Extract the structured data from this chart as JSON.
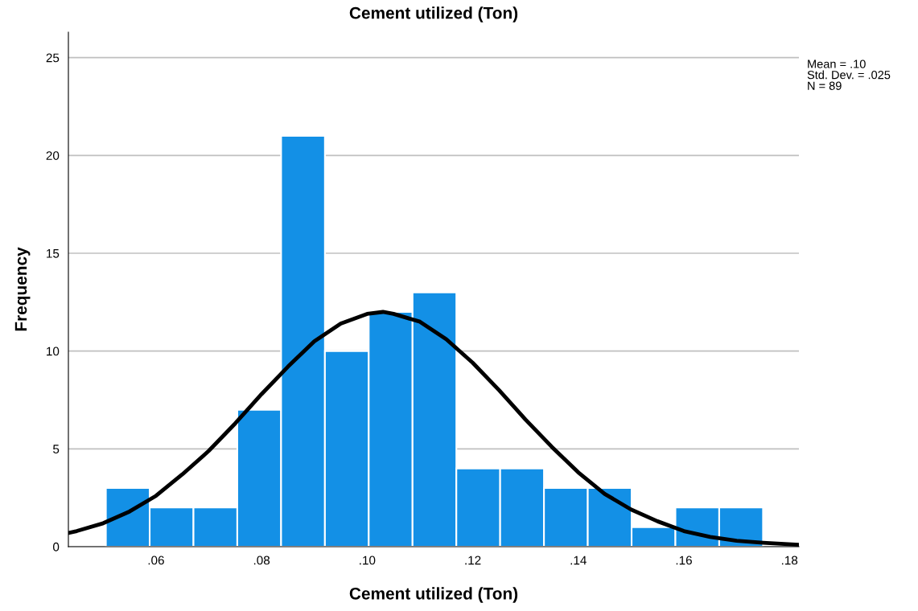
{
  "chart_data": {
    "type": "histogram",
    "title": "Cement utilized (Ton)",
    "xlabel": "Cement utilized (Ton)",
    "ylabel": "Frequency",
    "bins": [
      0.0505,
      0.0588,
      0.0671,
      0.0754,
      0.0837,
      0.092,
      0.1003,
      0.1086,
      0.1169,
      0.1252,
      0.1335,
      0.1418,
      0.1501,
      0.1584,
      0.1667,
      0.175
    ],
    "values": [
      3,
      2,
      2,
      7,
      21,
      10,
      12,
      13,
      4,
      4,
      3,
      3,
      1,
      2,
      2
    ],
    "color": "#1390e6",
    "series": [
      {
        "type": "line",
        "color": "#000000",
        "x": [
          0.0434,
          0.045,
          0.05,
          0.055,
          0.06,
          0.065,
          0.07,
          0.075,
          0.08,
          0.085,
          0.09,
          0.095,
          0.1,
          0.103,
          0.105,
          0.11,
          0.115,
          0.12,
          0.125,
          0.13,
          0.135,
          0.14,
          0.145,
          0.15,
          0.155,
          0.16,
          0.165,
          0.17,
          0.175,
          0.1818
        ],
        "values": [
          0.7,
          0.8,
          1.2,
          1.8,
          2.6,
          3.7,
          4.9,
          6.3,
          7.8,
          9.2,
          10.5,
          11.4,
          11.9,
          12,
          11.9,
          11.5,
          10.6,
          9.4,
          8.0,
          6.5,
          5.1,
          3.8,
          2.7,
          1.9,
          1.3,
          0.8,
          0.5,
          0.3,
          0.2,
          0.1
        ]
      }
    ],
    "xlim": [
      0.0434,
      0.1818
    ],
    "xticks": [
      {
        "value": 0.06,
        "label": ".06"
      },
      {
        "value": 0.08,
        "label": ".08"
      },
      {
        "value": 0.1,
        "label": ".10"
      },
      {
        "value": 0.12,
        "label": ".12"
      },
      {
        "value": 0.14,
        "label": ".14"
      },
      {
        "value": 0.16,
        "label": ".16"
      },
      {
        "value": 0.18,
        "label": ".18"
      }
    ],
    "ylim": [
      0,
      26.3
    ],
    "yticks": [
      0,
      5,
      10,
      15,
      20,
      25
    ],
    "grid": "y",
    "annotations": [
      "Mean = .10\nStd. Dev. = .025\nN = 89"
    ]
  }
}
